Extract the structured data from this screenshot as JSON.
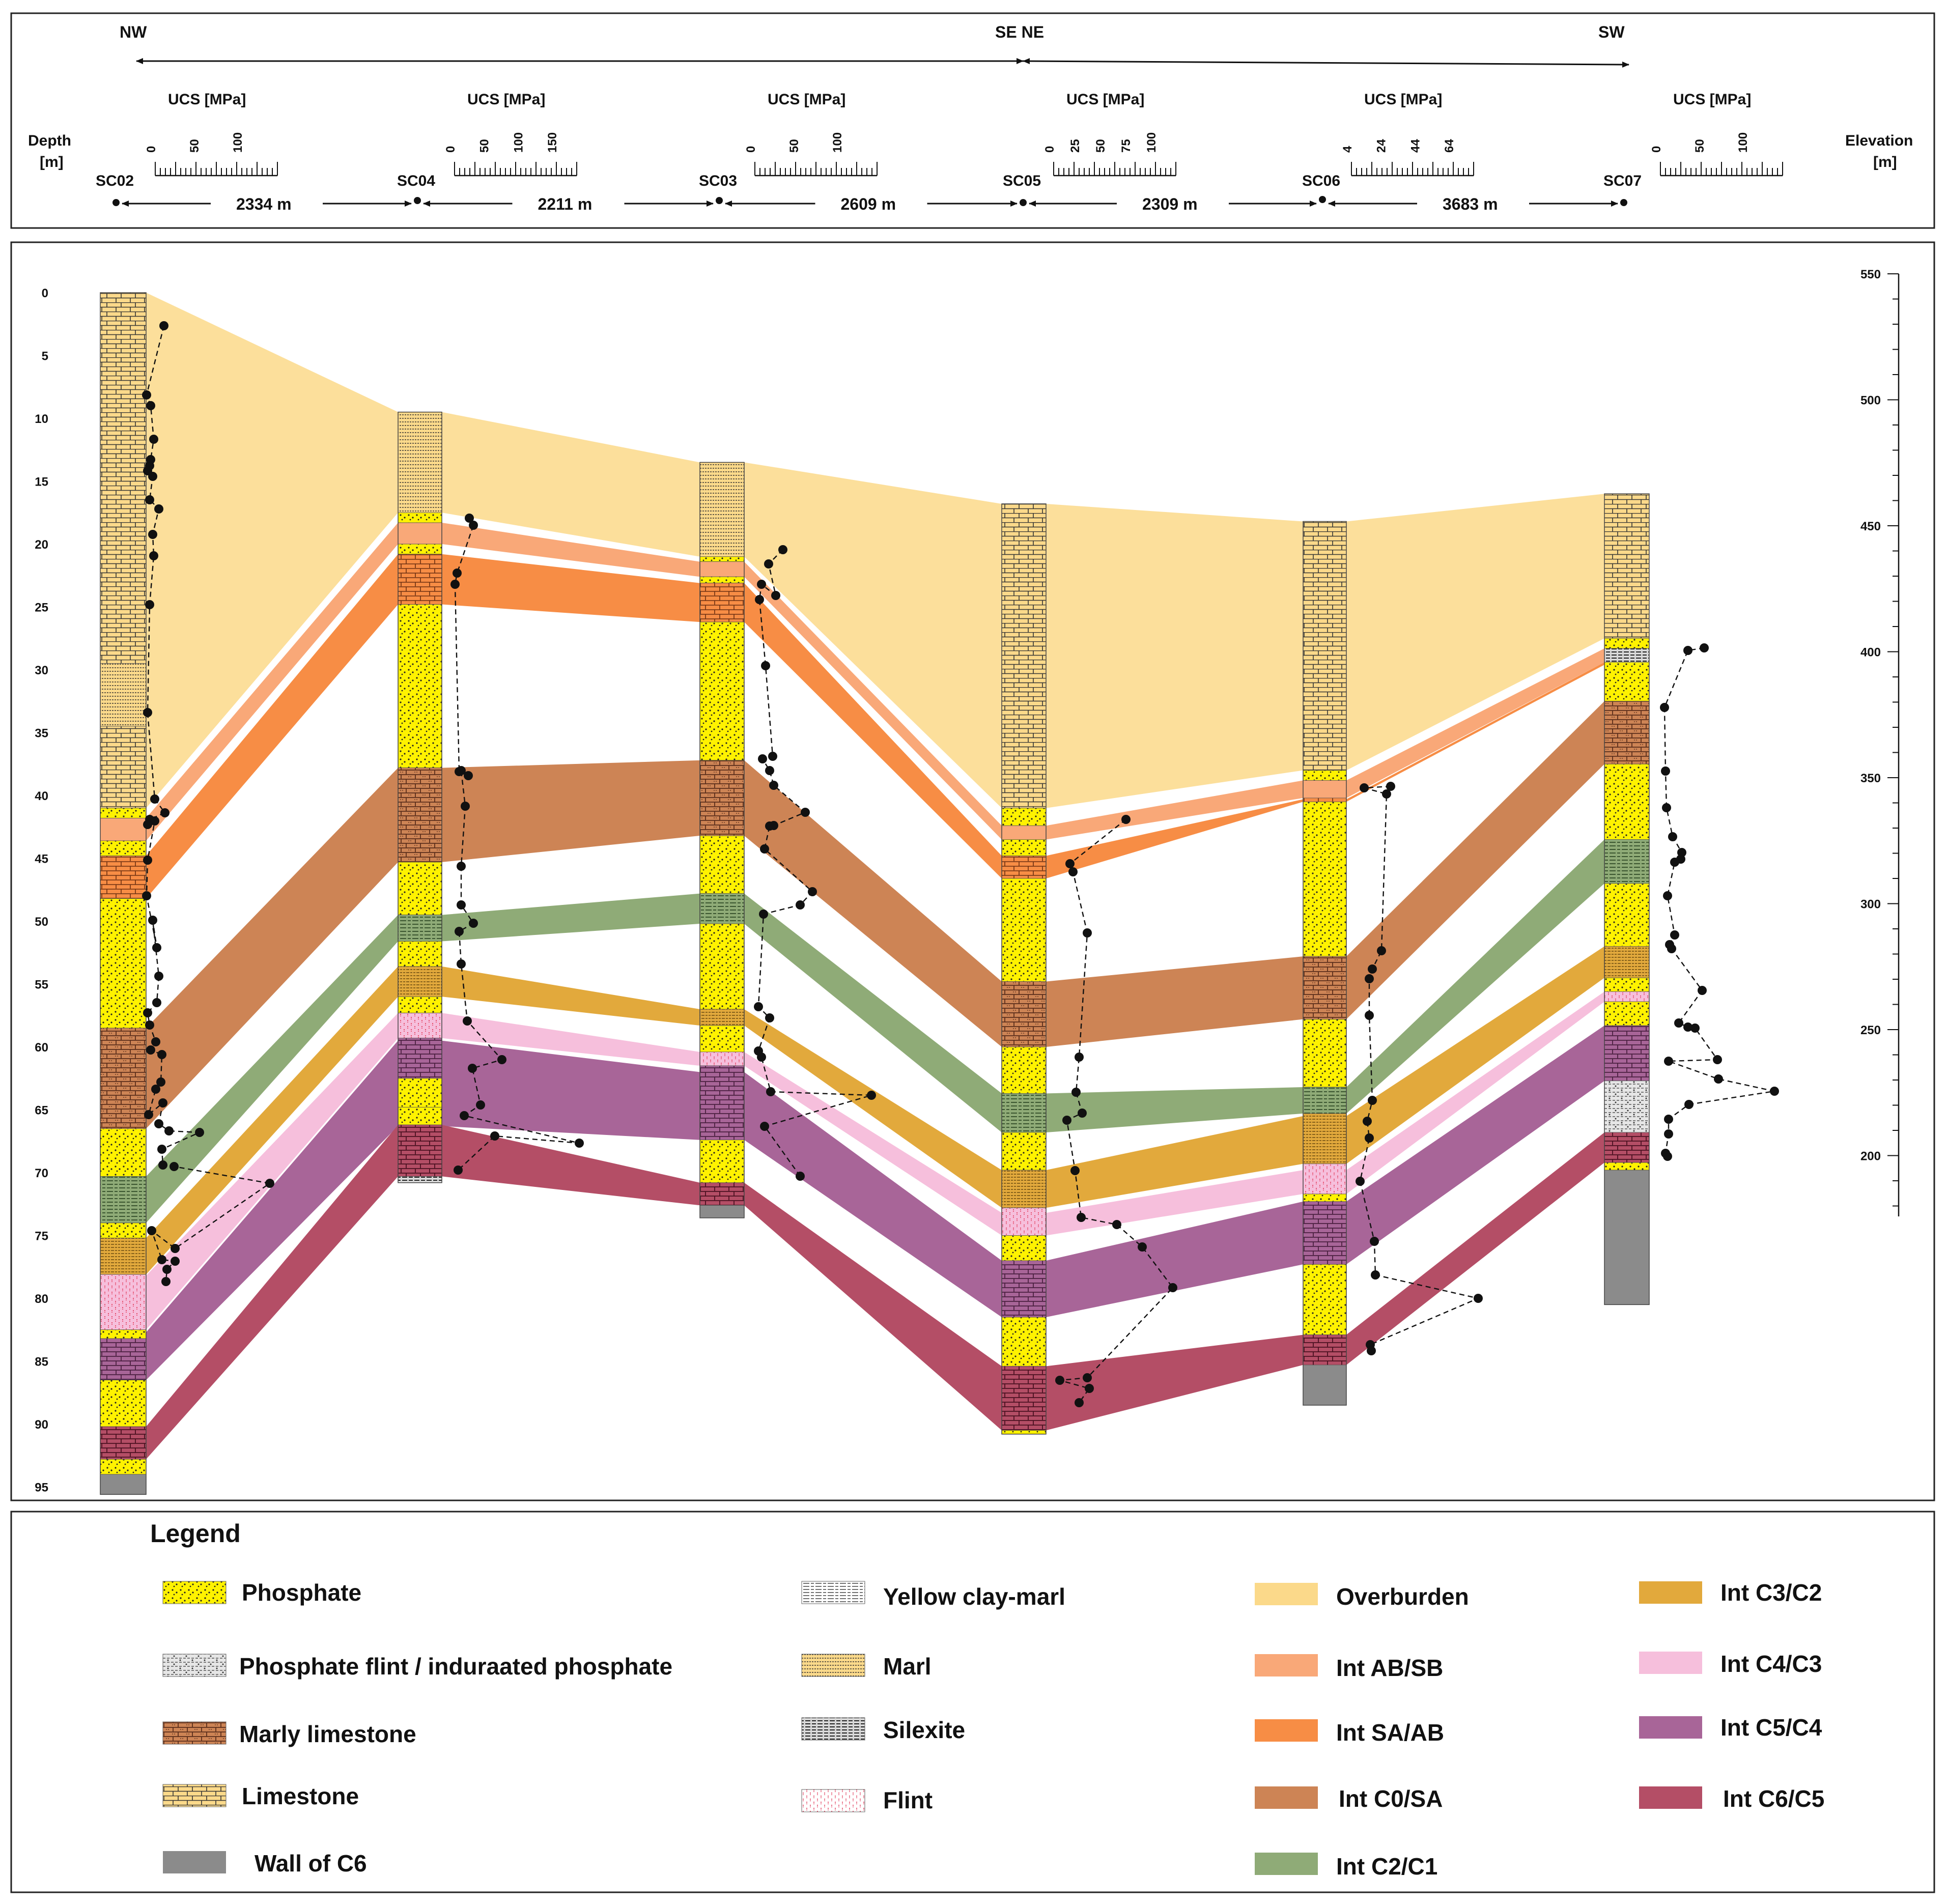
{
  "header": {
    "directions": {
      "left": "NW",
      "mid": "SE NE",
      "right": "SW"
    },
    "depth_label": "Depth",
    "depth_unit": "[m]",
    "elevation_label": "Elevation",
    "elevation_unit": "[m]",
    "ucs_label": "UCS [MPa]",
    "wells": [
      {
        "name": "SC02",
        "ticks": [
          "0",
          "50",
          "100"
        ]
      },
      {
        "name": "SC04",
        "ticks": [
          "0",
          "50",
          "100",
          "150"
        ]
      },
      {
        "name": "SC03",
        "ticks": [
          "0",
          "50",
          "100"
        ]
      },
      {
        "name": "SC05",
        "ticks": [
          "0",
          "25",
          "50",
          "75",
          "100"
        ]
      },
      {
        "name": "SC06",
        "ticks": [
          "4",
          "24",
          "44",
          "64"
        ]
      },
      {
        "name": "SC07",
        "ticks": [
          "0",
          "50",
          "100"
        ]
      }
    ],
    "distances": [
      "2334 m",
      "2211 m",
      "2609 m",
      "2309 m",
      "3683 m"
    ]
  },
  "axes": {
    "depth_ticks": [
      "0",
      "5",
      "10",
      "15",
      "20",
      "25",
      "30",
      "35",
      "40",
      "45",
      "50",
      "55",
      "60",
      "65",
      "70",
      "75",
      "80",
      "85",
      "90",
      "95"
    ],
    "elevation_ticks": [
      "550",
      "500",
      "450",
      "400",
      "350",
      "300",
      "250",
      "200"
    ]
  },
  "colors": {
    "overburden": "#fbd98a",
    "int_ab_sb": "#f9a878",
    "int_sa_ab": "#f78d45",
    "int_c0_sa": "#cd8455",
    "int_c2_c1": "#8fab77",
    "int_c3_c2": "#e2a93c",
    "int_c4_c3": "#f6bfdc",
    "int_c5_c4": "#a86598",
    "int_c6_c5": "#b44e66",
    "phosphate": "#fff200",
    "wall": "#8b8b8b"
  },
  "legend": {
    "title": "Legend",
    "lithology": [
      "Phosphate",
      "Phosphate flint / induraated phosphate",
      "Marly limestone",
      "Limestone",
      "Wall of C6",
      "Yellow clay-marl",
      "Marl",
      "Silexite",
      "Flint"
    ],
    "intervals": [
      "Overburden",
      "Int AB/SB",
      "Int SA/AB",
      "Int C0/SA",
      "Int C2/C1",
      "Int C3/C2",
      "Int C4/C3",
      "Int C5/C4",
      "Int C6/C5"
    ]
  }
}
